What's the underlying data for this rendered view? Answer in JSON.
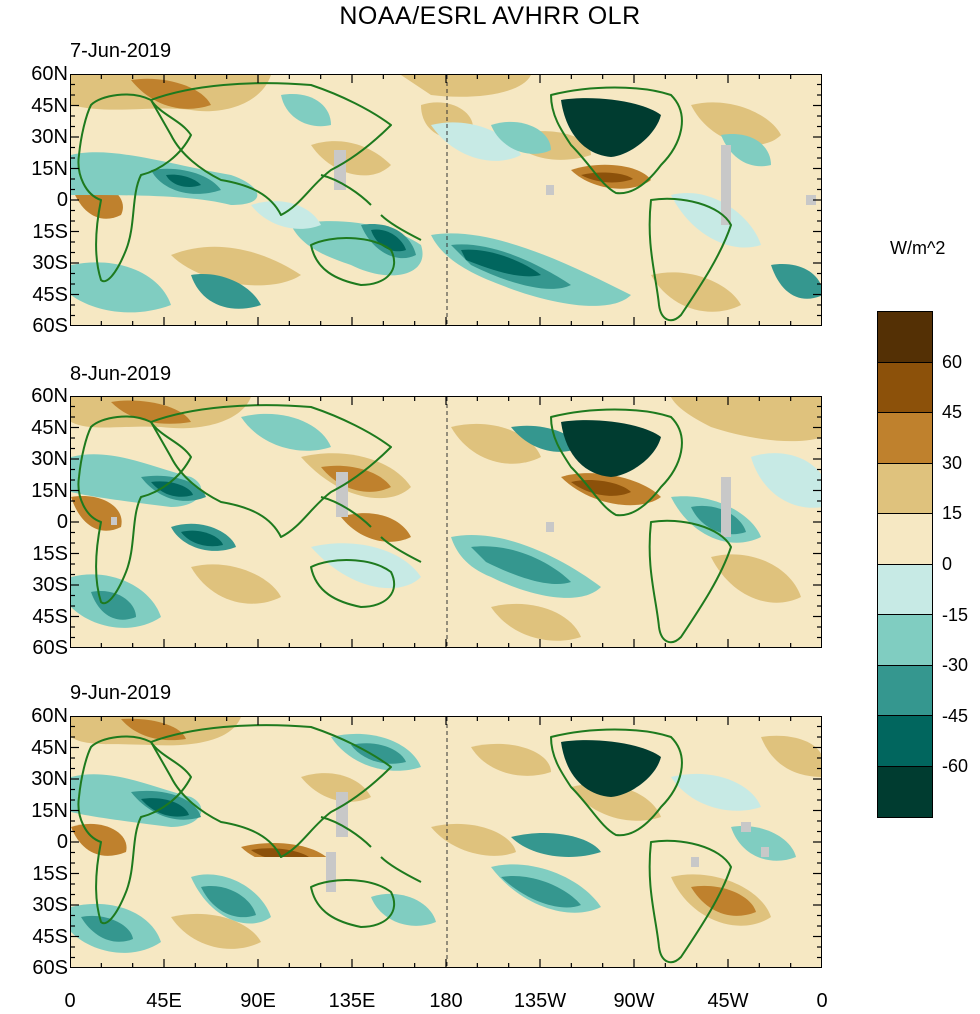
{
  "title": "NOAA/ESRL AVHRR OLR",
  "panels": [
    {
      "date": "7-Jun-2019"
    },
    {
      "date": "8-Jun-2019"
    },
    {
      "date": "9-Jun-2019"
    }
  ],
  "lat_labels": [
    "60N",
    "45N",
    "30N",
    "15N",
    "0",
    "15S",
    "30S",
    "45S",
    "60S"
  ],
  "lon_labels": [
    "0",
    "45E",
    "90E",
    "135E",
    "180",
    "135W",
    "90W",
    "45W",
    "0"
  ],
  "colorbar": {
    "title": "W/m^2",
    "labels": [
      "60",
      "45",
      "30",
      "15",
      "0",
      "-15",
      "-30",
      "-45",
      "-60"
    ],
    "colors": [
      "#543005",
      "#8c510a",
      "#bf812d",
      "#dfc27d",
      "#f6e8c3",
      "#c7eae5",
      "#80cdc1",
      "#35978f",
      "#01665e",
      "#003c30"
    ]
  },
  "map": {
    "lon_range": [
      0,
      360
    ],
    "lat_range": [
      -60,
      60
    ],
    "coastline_color": "#1e7a1e",
    "missing_color": "#c8c8c8"
  }
}
